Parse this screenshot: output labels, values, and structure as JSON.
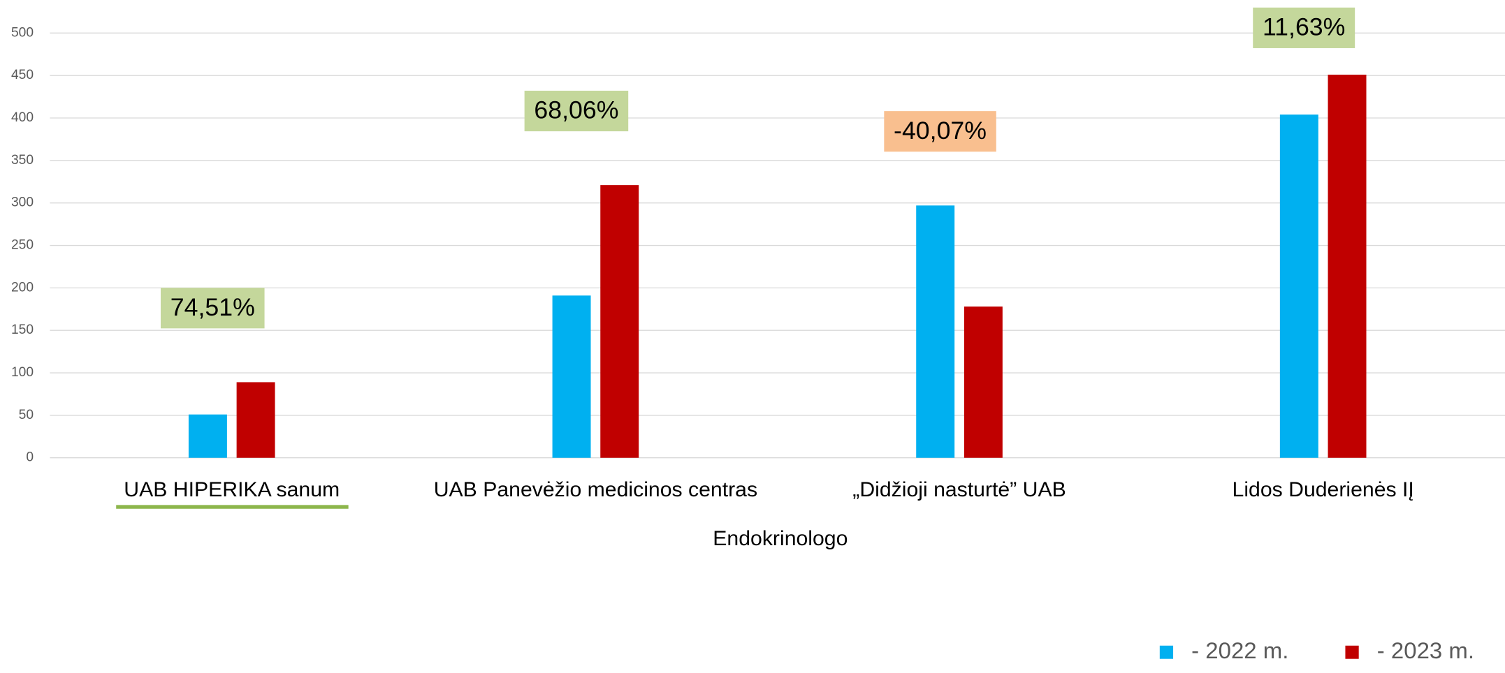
{
  "chart_data": {
    "type": "bar",
    "x_label": "Endokrinologo",
    "categories": [
      "UAB HIPERIKA sanum",
      "UAB Panevėžio medicinos centras",
      "„Didžioji nasturtė” UAB",
      "Lidos Duderienės IĮ"
    ],
    "series": [
      {
        "name": "- 2022 m.",
        "color": "#00b0f0",
        "values": [
          51,
          191,
          297,
          404
        ]
      },
      {
        "name": "- 2023 m.",
        "color": "#c00000",
        "values": [
          89,
          321,
          178,
          451
        ]
      }
    ],
    "annotations": [
      {
        "text": "74,51%",
        "color": "#c4d79b"
      },
      {
        "text": "68,06%",
        "color": "#c4d79b"
      },
      {
        "text": "-40,07%",
        "color": "#f9bf8f"
      },
      {
        "text": "11,63%",
        "color": "#c4d79b"
      }
    ],
    "ylim": [
      0,
      500
    ],
    "yticks": [
      0,
      50,
      100,
      150,
      200,
      250,
      300,
      350,
      400,
      450,
      500
    ],
    "grid": true,
    "legend": "bottom-right"
  }
}
